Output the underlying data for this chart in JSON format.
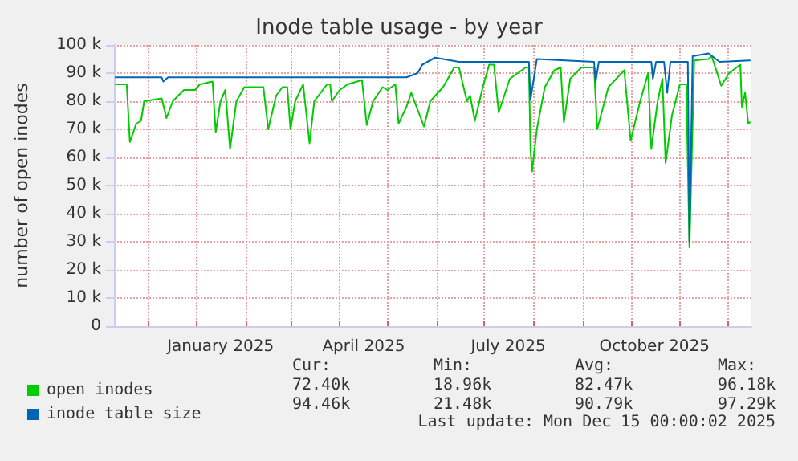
{
  "chart_data": {
    "type": "line",
    "title": "Inode table usage - by year",
    "ylabel": "number of open inodes",
    "xlim": [
      "2024-11-10",
      "2025-12-16"
    ],
    "xticks": [
      {
        "value": "2024-12-01",
        "label": null
      },
      {
        "value": "2025-01-01",
        "label": null
      },
      {
        "value": "2025-01-16",
        "label": "January 2025"
      },
      {
        "value": "2025-02-01",
        "label": null
      },
      {
        "value": "2025-03-01",
        "label": null
      },
      {
        "value": "2025-04-01",
        "label": null
      },
      {
        "value": "2025-04-16",
        "label": "April 2025"
      },
      {
        "value": "2025-05-01",
        "label": null
      },
      {
        "value": "2025-06-01",
        "label": null
      },
      {
        "value": "2025-07-01",
        "label": null
      },
      {
        "value": "2025-07-16",
        "label": "July 2025"
      },
      {
        "value": "2025-08-01",
        "label": null
      },
      {
        "value": "2025-09-01",
        "label": null
      },
      {
        "value": "2025-10-01",
        "label": null
      },
      {
        "value": "2025-10-16",
        "label": "October 2025"
      },
      {
        "value": "2025-11-01",
        "label": null
      },
      {
        "value": "2025-12-01",
        "label": null
      }
    ],
    "ylim": [
      0,
      100
    ],
    "yticks": [
      0,
      {
        "value": 10,
        "label": "10 k"
      },
      {
        "value": 20,
        "label": "20 k"
      },
      {
        "value": 30,
        "label": "30 k"
      },
      {
        "value": 40,
        "label": "40 k"
      },
      {
        "value": 50,
        "label": "50 k"
      },
      {
        "value": 60,
        "label": "60 k"
      },
      {
        "value": 70,
        "label": "70 k"
      },
      {
        "value": 80,
        "label": "80 k"
      },
      {
        "value": 90,
        "label": "90 k"
      },
      {
        "value": 100,
        "label": "100 k"
      }
    ],
    "grid": true,
    "legend": "bottom left",
    "marker": "none",
    "line_style": "solid",
    "series": [
      {
        "name": "open inodes",
        "color": "#00cc00",
        "x": [
          "2024-11-11",
          "2024-11-18",
          "2024-11-20",
          "2024-11-24",
          "2024-11-27",
          "2024-11-29",
          "2024-12-10",
          "2024-12-13",
          "2024-12-17",
          "2024-12-24",
          "2024-12-31",
          "2025-01-03",
          "2025-01-11",
          "2025-01-13",
          "2025-01-16",
          "2025-01-19",
          "2025-01-22",
          "2025-01-26",
          "2025-01-31",
          "2025-02-12",
          "2025-02-15",
          "2025-02-20",
          "2025-02-24",
          "2025-02-27",
          "2025-03-01",
          "2025-03-04",
          "2025-03-09",
          "2025-03-13",
          "2025-03-16",
          "2025-03-24",
          "2025-03-26",
          "2025-03-27",
          "2025-04-01",
          "2025-04-06",
          "2025-04-15",
          "2025-04-18",
          "2025-04-22",
          "2025-04-28",
          "2025-05-01",
          "2025-05-06",
          "2025-05-08",
          "2025-05-13",
          "2025-05-16",
          "2025-05-24",
          "2025-05-28",
          "2025-06-05",
          "2025-06-12",
          "2025-06-15",
          "2025-06-20",
          "2025-06-22",
          "2025-06-25",
          "2025-06-30",
          "2025-07-04",
          "2025-07-07",
          "2025-07-10",
          "2025-07-17",
          "2025-07-27",
          "2025-07-29",
          "2025-07-30",
          "2025-07-31",
          "2025-08-03",
          "2025-08-08",
          "2025-08-14",
          "2025-08-18",
          "2025-08-20",
          "2025-08-24",
          "2025-08-31",
          "2025-09-08",
          "2025-09-10",
          "2025-09-17",
          "2025-09-27",
          "2025-10-01",
          "2025-10-07",
          "2025-10-12",
          "2025-10-14",
          "2025-10-18",
          "2025-10-21",
          "2025-10-23",
          "2025-10-27",
          "2025-11-01",
          "2025-11-05",
          "2025-11-07",
          "2025-11-10",
          "2025-11-19",
          "2025-11-21",
          "2025-11-27",
          "2025-12-02",
          "2025-12-09",
          "2025-12-10",
          "2025-12-12",
          "2025-12-14",
          "2025-12-15"
        ],
        "values": [
          86,
          86,
          65.5,
          72,
          73,
          80,
          81,
          74,
          80,
          84,
          84,
          86,
          87,
          69,
          80,
          84,
          63,
          80,
          85,
          85,
          70,
          82,
          85,
          85,
          70,
          80,
          86,
          65,
          80,
          86,
          86,
          80,
          84,
          86,
          87.5,
          71.5,
          80,
          85,
          84,
          86,
          72,
          78,
          83,
          71,
          80,
          85,
          92,
          92,
          80,
          82,
          73,
          85,
          93,
          93,
          76,
          88,
          92,
          92,
          63,
          55,
          70,
          85,
          91,
          92,
          72.5,
          88,
          92,
          92,
          70,
          85,
          91,
          66,
          80,
          90,
          63,
          80,
          88,
          58,
          75,
          86,
          86,
          28,
          94.5,
          95,
          96,
          85.5,
          90,
          93,
          78,
          83,
          72,
          72.5
        ]
      },
      {
        "name": "inode table size",
        "color": "#0066b3",
        "x": [
          "2024-11-11",
          "2024-12-10",
          "2024-12-11",
          "2024-12-14",
          "2025-05-13",
          "2025-05-20",
          "2025-05-23",
          "2025-05-31",
          "2025-06-15",
          "2025-07-29",
          "2025-07-30",
          "2025-08-03",
          "2025-09-08",
          "2025-09-09",
          "2025-09-11",
          "2025-10-14",
          "2025-10-15",
          "2025-10-17",
          "2025-10-22",
          "2025-10-24",
          "2025-10-26",
          "2025-11-06",
          "2025-11-07",
          "2025-11-09",
          "2025-11-19",
          "2025-11-26",
          "2025-12-15"
        ],
        "values": [
          88.5,
          88.5,
          87,
          88.5,
          88.5,
          90,
          93,
          95.5,
          94,
          94,
          80.5,
          95,
          94,
          87,
          94,
          94,
          88,
          94,
          94,
          83,
          94,
          94,
          30,
          96,
          97,
          94,
          94.5
        ]
      }
    ],
    "annotations": [
      "Cur:",
      "Min:",
      "Avg:",
      "Max:",
      "72.40k",
      "18.96k",
      "82.47k",
      "96.18k",
      "94.46k",
      "21.48k",
      "90.79k",
      "97.29k",
      "Last update: Mon Dec 15 00:00:02 2025"
    ]
  }
}
